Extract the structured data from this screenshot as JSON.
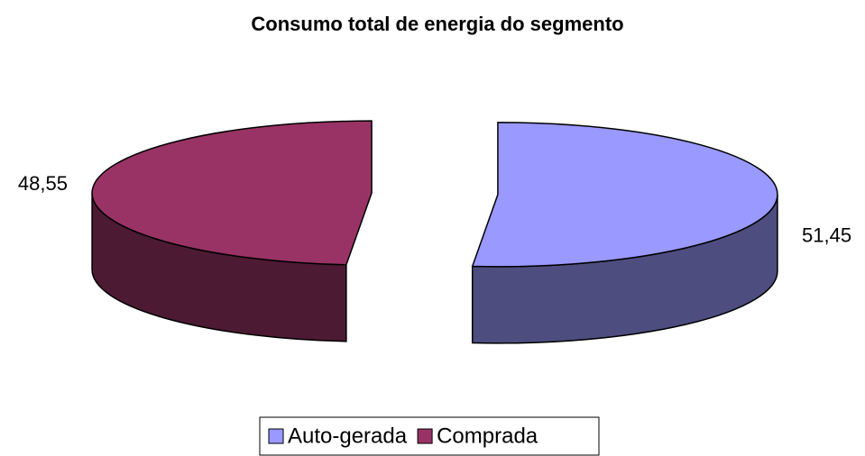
{
  "chart_data": {
    "type": "pie3d",
    "title": "Consumo total de energia do segmento",
    "categories": [
      "Auto-gerada",
      "Comprada"
    ],
    "values": [
      51.45,
      48.55
    ],
    "value_labels": [
      "51,45",
      "48,55"
    ],
    "colors": [
      "#9999ff",
      "#993366"
    ],
    "legend": "bottom"
  }
}
